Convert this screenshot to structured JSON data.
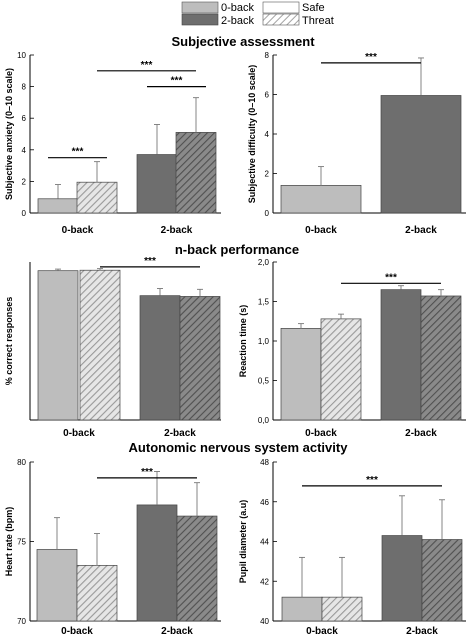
{
  "legend": {
    "items": [
      {
        "label": "0-back",
        "color": "#bdbdbd",
        "pattern": "solid"
      },
      {
        "label": "2-back",
        "color": "#6e6e6e",
        "pattern": "solid"
      },
      {
        "label": "Safe",
        "color": "#ffffff",
        "pattern": "solid"
      },
      {
        "label": "Threat",
        "color": "#ffffff",
        "pattern": "hatched"
      }
    ]
  },
  "sections": [
    {
      "title": "Subjective assessment"
    },
    {
      "title": "n-back performance"
    },
    {
      "title": "Autonomic nervous system activity"
    }
  ],
  "colors": {
    "zero_back": "#bdbdbd",
    "two_back": "#6e6e6e",
    "axis": "#000000"
  },
  "chart_data": [
    {
      "type": "bar",
      "ylabel": "Subjective anxiety (0–10 scale)",
      "ylim": [
        0,
        10
      ],
      "yticks": [
        "0",
        "2",
        "4",
        "6",
        "8",
        "10"
      ],
      "categories": [
        "0-back",
        "2-back"
      ],
      "series": [
        {
          "name": "Safe",
          "values": [
            0.9,
            3.7
          ],
          "errors": [
            0.9,
            1.9
          ]
        },
        {
          "name": "Threat",
          "values": [
            1.95,
            5.1
          ],
          "errors": [
            1.3,
            2.2
          ]
        }
      ],
      "significance": [
        {
          "label": "***",
          "from": [
            0,
            0
          ],
          "to": [
            0,
            1
          ],
          "y": 3.5
        },
        {
          "label": "***",
          "from": [
            1,
            0
          ],
          "to": [
            1,
            1
          ],
          "y": 8.0
        },
        {
          "label": "***",
          "from": [
            0,
            1
          ],
          "to": [
            1,
            1
          ],
          "y": 9.0
        }
      ]
    },
    {
      "type": "bar",
      "ylabel": "Subjective difficulty (0–10 scale)",
      "ylim": [
        0,
        8
      ],
      "yticks": [
        "0",
        "2",
        "4",
        "6",
        "8"
      ],
      "categories": [
        "0-back",
        "2-back"
      ],
      "series": [
        {
          "name": "",
          "values": [
            1.4,
            5.95
          ],
          "errors": [
            0.95,
            1.9
          ]
        }
      ],
      "significance": [
        {
          "label": "***",
          "from": [
            0,
            0
          ],
          "to": [
            1,
            0
          ],
          "y": 7.6
        }
      ]
    },
    {
      "type": "bar",
      "ylabel": "% correct responses",
      "ylim": [
        0,
        100
      ],
      "yticks": [],
      "categories": [
        "0-back",
        "2-back"
      ],
      "series": [
        {
          "name": "Safe",
          "values": [
            94.5,
            78.7
          ],
          "errors": [
            1.0,
            4.5
          ]
        },
        {
          "name": "Threat",
          "values": [
            94.8,
            78.2
          ],
          "errors": [
            1.0,
            4.5
          ]
        }
      ],
      "significance": [
        {
          "label": "***",
          "from": [
            0,
            1
          ],
          "to": [
            1,
            1
          ],
          "y": 96.9
        }
      ]
    },
    {
      "type": "bar",
      "ylabel": "Reaction time (s)",
      "ylim": [
        0,
        2.0
      ],
      "yticks": [
        "0,0",
        "0,5",
        "1,0",
        "1,5",
        "2,0"
      ],
      "categories": [
        "0-back",
        "2-back"
      ],
      "series": [
        {
          "name": "Safe",
          "values": [
            1.16,
            1.65
          ],
          "errors": [
            0.06,
            0.05
          ]
        },
        {
          "name": "Threat",
          "values": [
            1.28,
            1.57
          ],
          "errors": [
            0.06,
            0.08
          ]
        }
      ],
      "significance": [
        {
          "label": "***",
          "from": [
            0,
            1
          ],
          "to": [
            1,
            1
          ],
          "y": 1.73
        }
      ]
    },
    {
      "type": "bar",
      "ylabel": "Heart rate (bpm)",
      "ylim": [
        70,
        80
      ],
      "yticks": [
        "70",
        "75",
        "80"
      ],
      "categories": [
        "0-back",
        "2-back"
      ],
      "series": [
        {
          "name": "Safe",
          "values": [
            74.5,
            77.3
          ],
          "errors": [
            2.0,
            2.1
          ]
        },
        {
          "name": "Threat",
          "values": [
            73.5,
            76.6
          ],
          "errors": [
            2.0,
            2.1
          ]
        }
      ],
      "significance": [
        {
          "label": "***",
          "from": [
            0,
            1
          ],
          "to": [
            1,
            1
          ],
          "y": 79.0
        }
      ]
    },
    {
      "type": "bar",
      "ylabel": "Pupil diameter (a.u)",
      "ylim": [
        40,
        48
      ],
      "yticks": [
        "40",
        "42",
        "44",
        "46",
        "48"
      ],
      "categories": [
        "0-back",
        "2-back"
      ],
      "series": [
        {
          "name": "Safe",
          "values": [
            41.2,
            44.3
          ],
          "errors": [
            2.0,
            2.0
          ]
        },
        {
          "name": "Threat",
          "values": [
            41.2,
            44.1
          ],
          "errors": [
            2.0,
            2.0
          ]
        }
      ],
      "significance": [
        {
          "label": "***",
          "from": [
            0,
            0
          ],
          "to": [
            1,
            1
          ],
          "y": 46.8
        }
      ]
    }
  ]
}
